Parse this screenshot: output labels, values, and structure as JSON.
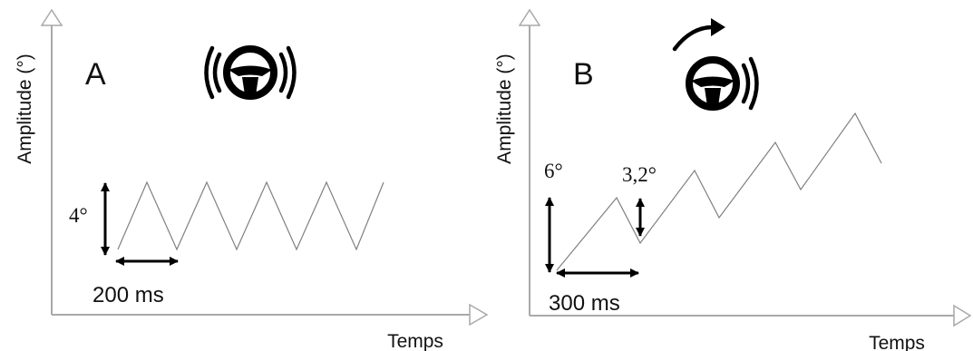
{
  "panels": [
    {
      "id": "A",
      "panel_label": "A",
      "y_axis_label": "Amplitude (°)",
      "x_axis_label": "Temps",
      "amplitude_label": "4°",
      "period_label": "200 ms",
      "icon": "steering-wheel-vibrating-icon"
    },
    {
      "id": "B",
      "panel_label": "B",
      "y_axis_label": "Amplitude (°)",
      "x_axis_label": "Temps",
      "amplitude_label": "6°",
      "step_label": "3,2°",
      "period_label": "300 ms",
      "icon": "steering-wheel-rotating-vibrating-icon"
    }
  ],
  "colors": {
    "axis": "#a9a9a9",
    "signal": "#808080",
    "arrows": "#000000",
    "text": "#111111",
    "icon": "#000000"
  }
}
